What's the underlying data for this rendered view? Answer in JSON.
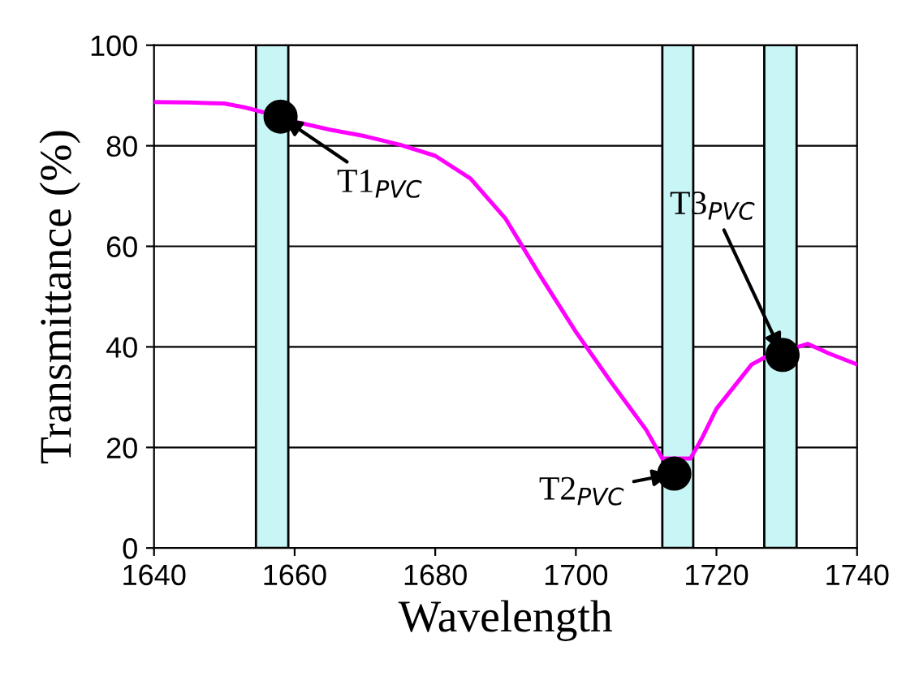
{
  "chart_data": {
    "type": "line",
    "xlabel": "Wavelength",
    "ylabel": "Transmittance (%)",
    "xlim": [
      1640,
      1740
    ],
    "xticks": [
      1640,
      1660,
      1680,
      1700,
      1720,
      1740
    ],
    "ylim": [
      0,
      100
    ],
    "yticks": [
      0,
      20,
      40,
      60,
      80,
      100
    ],
    "grid": "y",
    "series": [
      {
        "color": "#ff00ff",
        "x": [
          1640,
          1645,
          1650,
          1653,
          1656,
          1660,
          1665,
          1670,
          1675,
          1680,
          1685,
          1690,
          1695,
          1700,
          1705,
          1710,
          1712.3,
          1716.3,
          1718,
          1720,
          1725,
          1727,
          1733,
          1736,
          1740
        ],
        "values": [
          88.7,
          88.6,
          88.4,
          87.6,
          86.5,
          84.8,
          83.2,
          81.9,
          80.2,
          78,
          73.5,
          65.5,
          54,
          43,
          33,
          23.5,
          17.8,
          17.8,
          22,
          27.7,
          36.5,
          38,
          40.6,
          38.7,
          36.5
        ]
      },
      {
        "type": "scatter",
        "color": "#000000",
        "marker": "circle",
        "x": [
          1658,
          1714,
          1729.4
        ],
        "values": [
          85.8,
          14.8,
          38.4
        ]
      }
    ],
    "bands": [
      {
        "axis": "x",
        "from": 1654.5,
        "to": 1659.1,
        "color": "#c8f5f5"
      },
      {
        "axis": "x",
        "from": 1712.3,
        "to": 1716.7,
        "color": "#c8f5f5"
      },
      {
        "axis": "x",
        "from": 1726.8,
        "to": 1731.4,
        "color": "#c8f5f5"
      }
    ],
    "annotations": [
      {
        "text": "T1$_{PVC}$",
        "x": 1658,
        "y": 85.8
      },
      {
        "text": "T2$_{PVC}$",
        "x": 1714,
        "y": 14.8
      },
      {
        "text": "T3$_{PVC}$",
        "x": 1729.4,
        "y": 38.4
      }
    ]
  }
}
